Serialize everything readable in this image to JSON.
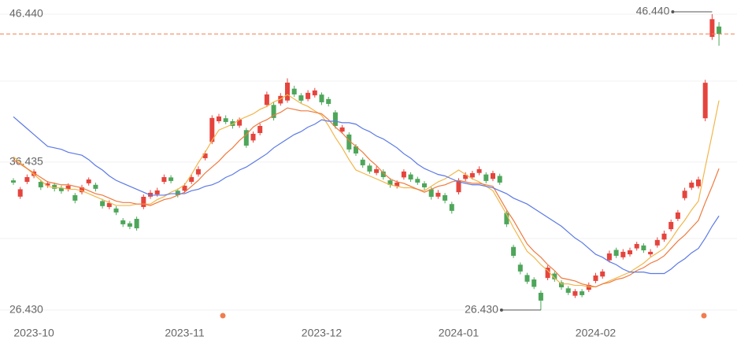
{
  "chart_data": {
    "type": "candlestick",
    "categories": [
      null,
      null,
      null,
      "2023-10",
      null,
      null,
      null,
      null,
      null,
      null,
      null,
      null,
      null,
      null,
      null,
      null,
      null,
      null,
      null,
      null,
      null,
      null,
      null,
      null,
      null,
      "2023-11",
      null,
      null,
      null,
      null,
      null,
      null,
      null,
      null,
      null,
      null,
      null,
      null,
      null,
      null,
      null,
      null,
      null,
      null,
      null,
      "2023-12",
      null,
      null,
      null,
      null,
      null,
      null,
      null,
      null,
      null,
      null,
      null,
      null,
      null,
      null,
      null,
      null,
      null,
      null,
      null,
      "2024-01",
      null,
      null,
      null,
      null,
      null,
      null,
      null,
      null,
      null,
      null,
      null,
      null,
      null,
      null,
      null,
      null,
      null,
      null,
      null,
      "2024-02",
      null,
      null,
      null,
      null,
      null,
      null,
      null,
      null,
      null,
      null,
      null,
      null,
      null,
      null,
      null,
      null,
      null,
      null
    ],
    "open": [
      35.2,
      34.1,
      35.1,
      35.5,
      35.1,
      34.85,
      34.9,
      34.7,
      34.6,
      34.2,
      34.4,
      35.0,
      34.9,
      33.8,
      33.4,
      33.3,
      32.5,
      32.3,
      32.6,
      33.4,
      34.1,
      34.25,
      35.1,
      35.4,
      34.5,
      34.5,
      35.1,
      35.6,
      36.7,
      37.8,
      39.2,
      39.4,
      39.2,
      38.9,
      38.6,
      37.9,
      38.4,
      40.3,
      40.3,
      40.4,
      40.6,
      41.4,
      40.95,
      40.7,
      40.95,
      41.0,
      40.7,
      39.8,
      38.5,
      38.3,
      37.5,
      36.6,
      36.2,
      35.7,
      35.8,
      35.2,
      34.8,
      35.4,
      35.6,
      35.3,
      35.0,
      34.6,
      34.1,
      34.2,
      33.6,
      34.4,
      35.3,
      35.4,
      35.7,
      35.6,
      35.3,
      35.5,
      33.0,
      30.7,
      29.5,
      28.8,
      28.5,
      27.6,
      28.6,
      28.9,
      28.3,
      27.9,
      27.4,
      27.7,
      27.8,
      28.4,
      28.7,
      29.8,
      30.5,
      30.0,
      30.2,
      30.6,
      30.8,
      30.2,
      30.8,
      31.2,
      31.9,
      32.6,
      34.0,
      34.7,
      34.8,
      39.4,
      44.9,
      45.6
    ],
    "close": [
      35.05,
      34.6,
      35.42,
      35.8,
      34.73,
      35.0,
      34.63,
      34.47,
      34.84,
      33.83,
      34.73,
      35.26,
      34.63,
      33.46,
      33.67,
      33.03,
      32.23,
      32.07,
      31.96,
      34.09,
      34.36,
      34.52,
      35.42,
      35.16,
      34.2,
      34.84,
      35.42,
      35.96,
      37.02,
      39.42,
      39.52,
      39.15,
      38.88,
      39.31,
      37.55,
      38.35,
      38.88,
      41.01,
      39.42,
      40.91,
      41.81,
      41.01,
      40.59,
      41.12,
      41.28,
      40.48,
      40.37,
      38.88,
      38.78,
      37.29,
      37.02,
      36.22,
      35.8,
      35.96,
      35.42,
      34.89,
      35.05,
      35.8,
      35.26,
      35.05,
      34.73,
      34.09,
      34.36,
      33.83,
      33.14,
      35.16,
      35.58,
      35.69,
      35.96,
      35.16,
      35.69,
      35.05,
      32.23,
      30.1,
      29.04,
      28.35,
      28.0,
      27.07,
      29.3,
      28.51,
      27.97,
      27.6,
      27.71,
      27.44,
      28.13,
      28.77,
      29.04,
      30.26,
      30.1,
      30.37,
      30.47,
      30.9,
      30.47,
      30.37,
      31.17,
      31.6,
      32.39,
      33.03,
      34.5,
      35.05,
      35.26,
      41.8,
      46.1,
      45.1
    ],
    "high": [
      35.35,
      34.75,
      35.6,
      35.95,
      35.25,
      35.15,
      35.05,
      34.85,
      35.0,
      34.35,
      34.9,
      35.4,
      35.05,
      33.95,
      33.85,
      33.45,
      32.65,
      32.45,
      32.75,
      34.25,
      34.55,
      34.7,
      35.6,
      35.55,
      34.65,
      35.0,
      35.6,
      36.15,
      37.2,
      39.6,
      39.7,
      39.6,
      39.35,
      39.45,
      38.75,
      38.5,
      39.05,
      41.2,
      40.5,
      41.1,
      42.1,
      41.6,
      41.1,
      41.3,
      41.45,
      41.15,
      40.85,
      39.95,
      38.95,
      38.45,
      37.65,
      36.75,
      36.35,
      36.15,
      35.95,
      35.35,
      35.2,
      35.95,
      35.75,
      35.45,
      35.15,
      34.75,
      34.55,
      34.35,
      33.75,
      35.35,
      35.75,
      35.85,
      36.15,
      35.75,
      35.85,
      35.65,
      33.15,
      30.85,
      29.65,
      28.95,
      28.65,
      27.75,
      29.45,
      29.05,
      28.45,
      28.05,
      27.85,
      27.85,
      28.3,
      28.95,
      29.2,
      30.45,
      30.65,
      30.55,
      30.65,
      31.05,
      30.95,
      30.55,
      31.35,
      31.8,
      32.55,
      33.2,
      34.7,
      35.2,
      35.45,
      42.0,
      46.44,
      45.9
    ],
    "low": [
      34.9,
      33.95,
      34.95,
      35.35,
      34.55,
      34.7,
      34.45,
      34.3,
      34.45,
      33.65,
      34.25,
      34.85,
      34.45,
      33.3,
      33.25,
      32.85,
      32.05,
      31.9,
      31.8,
      33.25,
      33.95,
      34.1,
      34.95,
      35.0,
      34.05,
      34.35,
      34.95,
      35.45,
      36.55,
      37.65,
      39.05,
      39.0,
      38.7,
      38.75,
      37.4,
      37.75,
      38.25,
      40.15,
      39.25,
      40.25,
      40.45,
      40.85,
      40.4,
      40.55,
      40.8,
      40.3,
      40.2,
      38.7,
      38.35,
      37.1,
      36.85,
      36.05,
      35.65,
      35.55,
      35.25,
      34.7,
      34.65,
      35.25,
      35.1,
      34.9,
      34.55,
      33.9,
      33.95,
      33.65,
      32.95,
      34.25,
      35.15,
      35.25,
      35.55,
      35.0,
      35.15,
      34.9,
      32.05,
      29.95,
      28.85,
      28.2,
      27.85,
      26.43,
      28.45,
      28.35,
      27.8,
      27.45,
      27.25,
      27.3,
      27.65,
      28.25,
      28.55,
      29.65,
      29.95,
      29.85,
      30.05,
      30.45,
      30.3,
      30.05,
      30.65,
      31.05,
      31.75,
      32.45,
      33.85,
      34.55,
      34.65,
      39.2,
      44.7,
      44.3
    ],
    "up_color": "#e5443d",
    "down_color": "#4ea65a",
    "lines": [
      {
        "color": "#f2b64a",
        "values": [
          36.8,
          36.4,
          36.0,
          35.6,
          35.2,
          34.8,
          34.7,
          34.7,
          34.6,
          34.6,
          34.5,
          34.3,
          34.1,
          33.9,
          33.7,
          33.5,
          33.5,
          33.5,
          33.6,
          33.6,
          33.6,
          33.9,
          34.1,
          34.4,
          34.6,
          34.9,
          35.6,
          36.4,
          37.1,
          37.9,
          38.6,
          38.8,
          39.0,
          39.3,
          39.5,
          39.7,
          40.0,
          40.2,
          40.5,
          40.7,
          41.0,
          40.7,
          40.4,
          40.2,
          39.9,
          39.6,
          38.9,
          38.1,
          37.4,
          36.6,
          35.9,
          35.7,
          35.5,
          35.3,
          35.1,
          34.9,
          34.8,
          34.7,
          34.7,
          34.6,
          34.5,
          34.8,
          35.1,
          35.3,
          35.6,
          35.9,
          35.6,
          35.3,
          35.1,
          34.8,
          34.5,
          33.7,
          32.9,
          32.0,
          31.2,
          30.4,
          30.0,
          29.5,
          29.1,
          28.6,
          28.2,
          28.2,
          28.1,
          28.1,
          28.0,
          28.0,
          28.2,
          28.4,
          28.6,
          28.8,
          29.0,
          29.3,
          29.6,
          30.0,
          30.3,
          30.6,
          31.2,
          31.9,
          32.5,
          33.2,
          33.8,
          36.1,
          38.3,
          40.6
        ]
      },
      {
        "color": "#ef7a3e",
        "values": [
          36.6,
          36.3,
          36.0,
          35.7,
          35.4,
          35.1,
          35.0,
          34.9,
          34.9,
          34.8,
          34.7,
          34.5,
          34.3,
          34.2,
          34.0,
          33.8,
          33.7,
          33.7,
          33.6,
          33.6,
          33.5,
          33.7,
          33.9,
          34.0,
          34.2,
          34.4,
          34.8,
          35.2,
          35.7,
          36.1,
          36.5,
          37.0,
          37.4,
          37.9,
          38.3,
          38.8,
          39.1,
          39.3,
          39.6,
          39.8,
          40.1,
          40.0,
          39.9,
          39.9,
          39.8,
          39.7,
          39.3,
          38.8,
          38.4,
          37.9,
          37.5,
          37.1,
          36.6,
          36.2,
          35.7,
          35.3,
          35.1,
          35.0,
          34.8,
          34.6,
          34.4,
          34.6,
          34.8,
          34.9,
          35.1,
          35.2,
          35.1,
          35.0,
          35.0,
          34.9,
          34.8,
          34.0,
          33.2,
          32.5,
          31.7,
          30.9,
          30.4,
          30.0,
          29.5,
          29.1,
          28.6,
          28.5,
          28.4,
          28.2,
          28.1,
          28.0,
          28.2,
          28.3,
          28.5,
          28.6,
          28.8,
          29.1,
          29.3,
          29.6,
          29.8,
          30.1,
          30.6,
          31.1,
          31.5,
          32.0,
          32.5,
          33.7,
          34.8,
          36.0
        ]
      },
      {
        "color": "#5b79e6",
        "values": [
          39.5,
          39.1,
          38.7,
          38.3,
          37.9,
          37.5,
          37.4,
          37.3,
          37.1,
          37.0,
          36.9,
          36.6,
          36.2,
          35.9,
          35.5,
          35.2,
          35.0,
          34.8,
          34.6,
          34.4,
          34.2,
          34.2,
          34.2,
          34.3,
          34.3,
          34.3,
          34.5,
          34.6,
          34.8,
          34.9,
          35.1,
          35.4,
          35.6,
          35.9,
          36.1,
          36.4,
          36.7,
          37.0,
          37.4,
          37.7,
          38.0,
          38.3,
          38.5,
          38.8,
          39.0,
          39.3,
          39.2,
          39.2,
          39.1,
          39.1,
          39.0,
          38.7,
          38.5,
          38.2,
          38.0,
          37.7,
          37.4,
          37.0,
          36.7,
          36.3,
          36.0,
          35.8,
          35.6,
          35.5,
          35.3,
          35.1,
          35.0,
          34.9,
          34.9,
          34.8,
          34.7,
          34.5,
          34.3,
          34.0,
          33.8,
          33.6,
          33.3,
          33.0,
          32.7,
          32.4,
          32.1,
          31.7,
          31.3,
          31.0,
          30.6,
          30.2,
          30.0,
          29.7,
          29.5,
          29.2,
          29.0,
          29.0,
          29.0,
          28.9,
          28.9,
          28.9,
          29.2,
          29.6,
          29.9,
          30.3,
          30.6,
          31.3,
          32.1,
          32.8
        ]
      }
    ],
    "last_color": "#f07d4f",
    "ylim": [
      25.84,
      46.97
    ],
    "yticks": [
      {
        "value": 26.43,
        "label": "26.430"
      },
      {
        "value": 36.435,
        "label": "36.435"
      },
      {
        "value": 46.44,
        "label": "46.440"
      }
    ],
    "high_marker": {
      "value": 46.44,
      "label": "46.440"
    },
    "low_marker": {
      "value": 26.43,
      "label": "26.430"
    }
  }
}
